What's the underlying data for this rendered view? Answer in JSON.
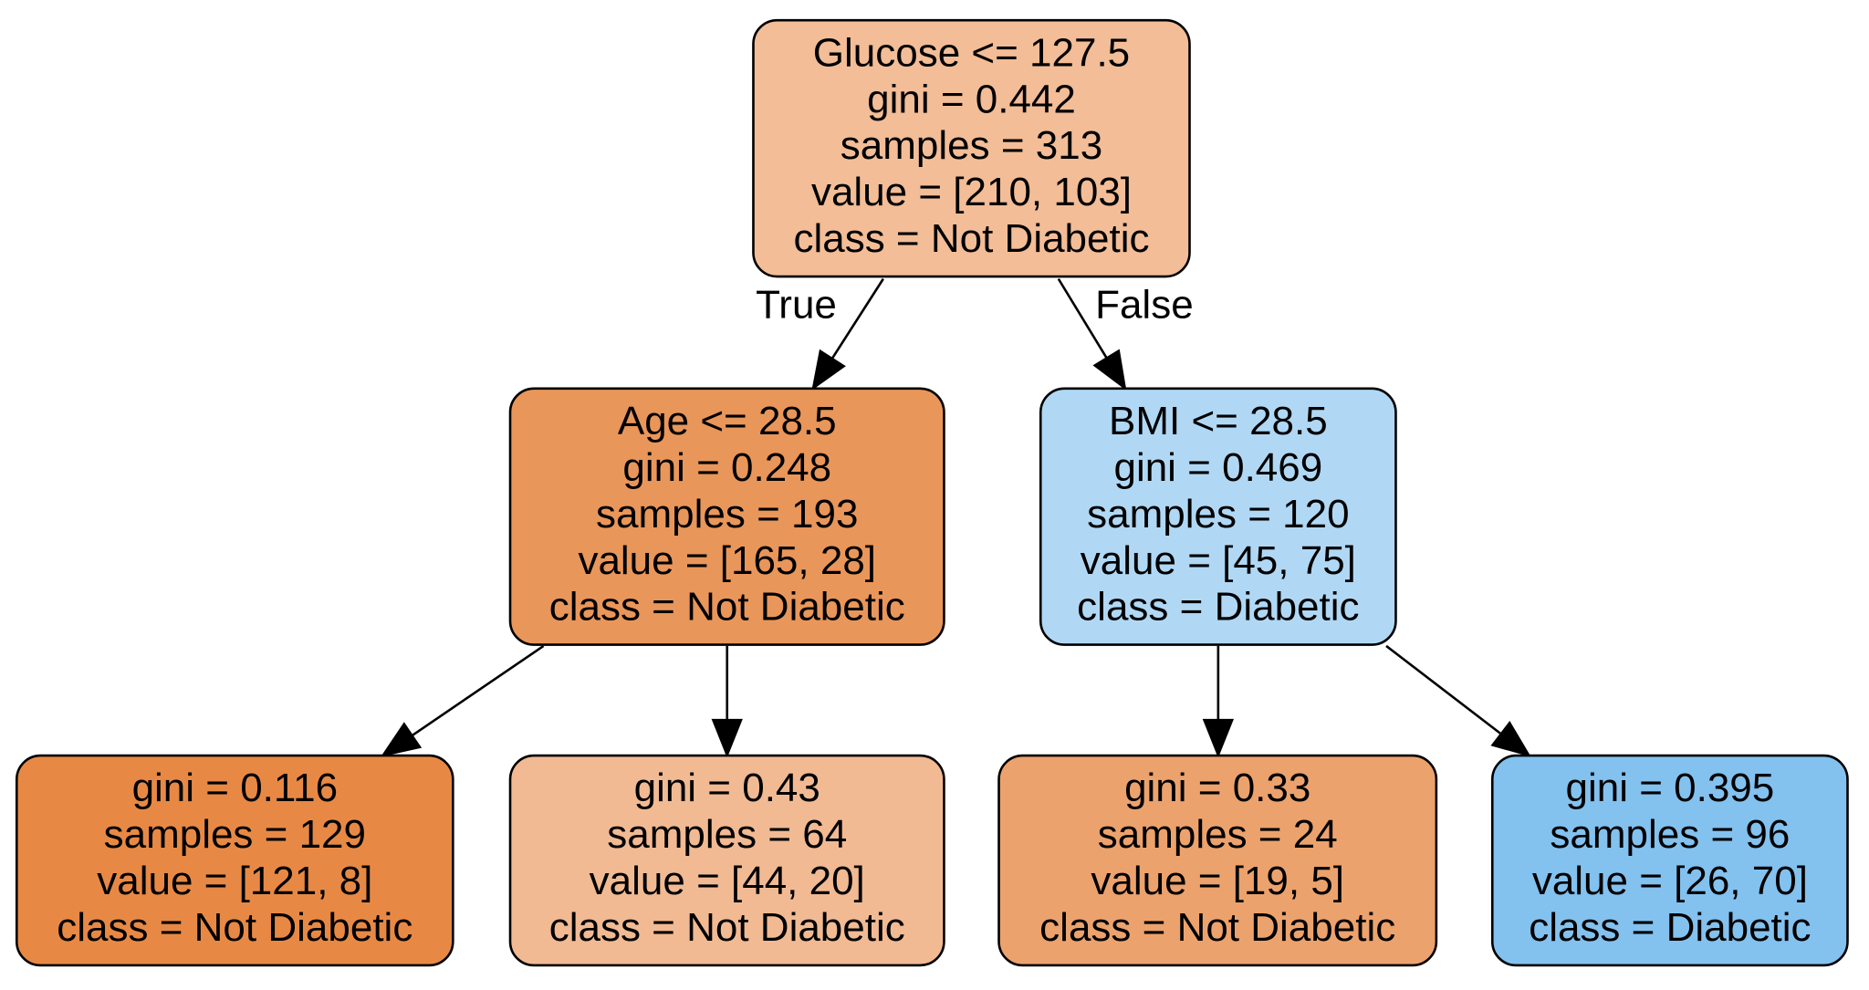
{
  "tree": {
    "nodes": [
      {
        "id": "root",
        "lines": [
          "Glucose <= 127.5",
          "gini = 0.442",
          "samples = 313",
          "value = [210, 103]",
          "class = Not Diabetic"
        ],
        "fill": "#f2bd97"
      },
      {
        "id": "age-split",
        "lines": [
          "Age <= 28.5",
          "gini = 0.248",
          "samples = 193",
          "value = [165, 28]",
          "class = Not Diabetic"
        ],
        "fill": "#e9965a"
      },
      {
        "id": "bmi-split",
        "lines": [
          "BMI <= 28.5",
          "gini = 0.469",
          "samples = 120",
          "value = [45, 75]",
          "class = Diabetic"
        ],
        "fill": "#b0d8f5"
      },
      {
        "id": "leaf-1",
        "lines": [
          "gini = 0.116",
          "samples = 129",
          "value = [121, 8]",
          "class = Not Diabetic"
        ],
        "fill": "#e78945"
      },
      {
        "id": "leaf-2",
        "lines": [
          "gini = 0.43",
          "samples = 64",
          "value = [44, 20]",
          "class = Not Diabetic"
        ],
        "fill": "#f1ba93"
      },
      {
        "id": "leaf-3",
        "lines": [
          "gini = 0.33",
          "samples = 24",
          "value = [19, 5]",
          "class = Not Diabetic"
        ],
        "fill": "#eca26d"
      },
      {
        "id": "leaf-4",
        "lines": [
          "gini = 0.395",
          "samples = 96",
          "value = [26, 70]",
          "class = Diabetic"
        ],
        "fill": "#83c1ef"
      }
    ],
    "edges": [
      {
        "from": "root",
        "to": "age-split",
        "label": "True"
      },
      {
        "from": "root",
        "to": "bmi-split",
        "label": "False"
      },
      {
        "from": "age-split",
        "to": "leaf-1",
        "label": ""
      },
      {
        "from": "age-split",
        "to": "leaf-2",
        "label": ""
      },
      {
        "from": "bmi-split",
        "to": "leaf-3",
        "label": ""
      },
      {
        "from": "bmi-split",
        "to": "leaf-4",
        "label": ""
      }
    ]
  }
}
